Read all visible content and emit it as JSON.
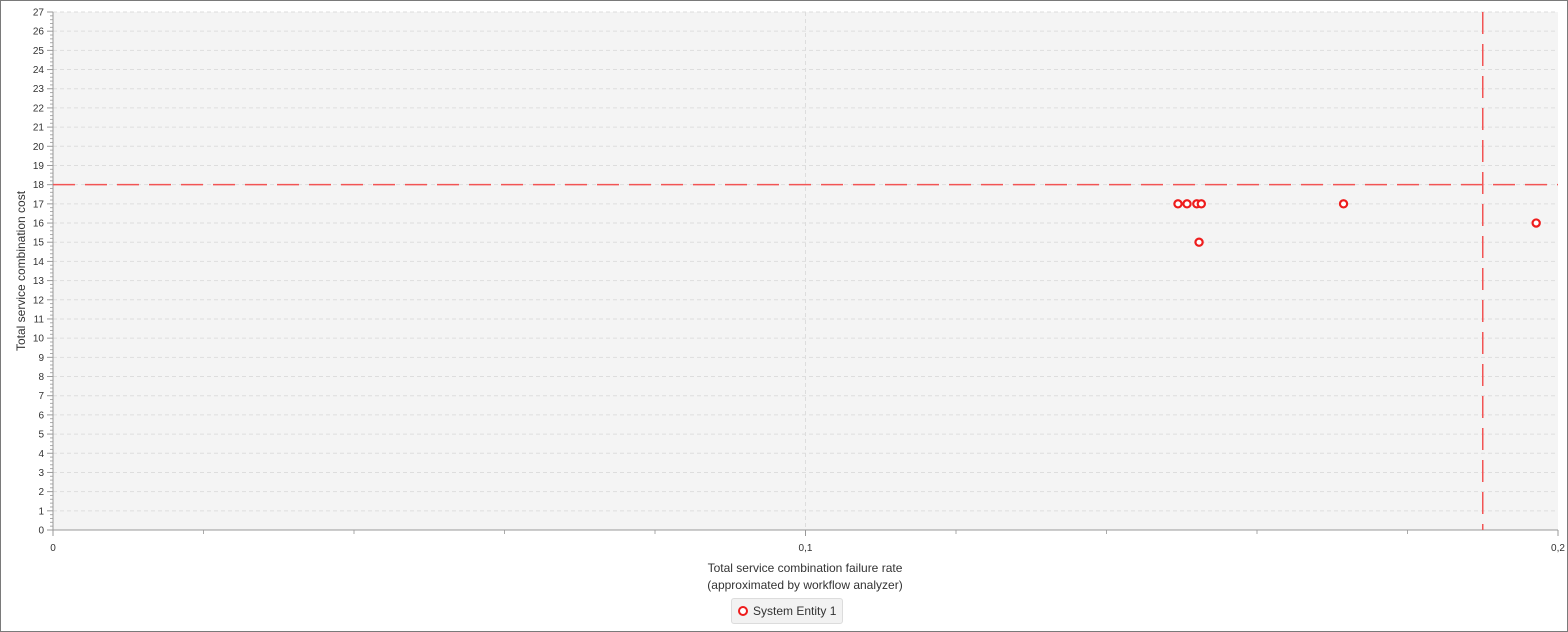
{
  "chart_data": {
    "type": "scatter",
    "xlabel_lines": [
      "Total service combination failure rate",
      "(approximated by workflow analyzer)"
    ],
    "ylabel": "Total service combination cost",
    "xlim": [
      0,
      0.2
    ],
    "ylim": [
      0,
      27
    ],
    "x_ticks": [
      {
        "value": 0,
        "label": "0"
      },
      {
        "value": 0.1,
        "label": "0,1"
      },
      {
        "value": 0.2,
        "label": "0,2"
      }
    ],
    "x_minor_step": 0.02,
    "y_ticks": [
      0,
      1,
      2,
      3,
      4,
      5,
      6,
      7,
      8,
      9,
      10,
      11,
      12,
      13,
      14,
      15,
      16,
      17,
      18,
      19,
      20,
      21,
      22,
      23,
      24,
      25,
      26,
      27
    ],
    "grid": true,
    "thresholds": {
      "x": 0.19,
      "y": 18
    },
    "series": [
      {
        "name": "System Entity 1",
        "color": "#ee1c1c",
        "points": [
          {
            "x": 0.1495,
            "y": 17
          },
          {
            "x": 0.1507,
            "y": 17
          },
          {
            "x": 0.152,
            "y": 17
          },
          {
            "x": 0.1526,
            "y": 17
          },
          {
            "x": 0.1523,
            "y": 15
          },
          {
            "x": 0.1715,
            "y": 17
          },
          {
            "x": 0.1971,
            "y": 16
          }
        ]
      }
    ],
    "legend_position": "bottom-center"
  }
}
